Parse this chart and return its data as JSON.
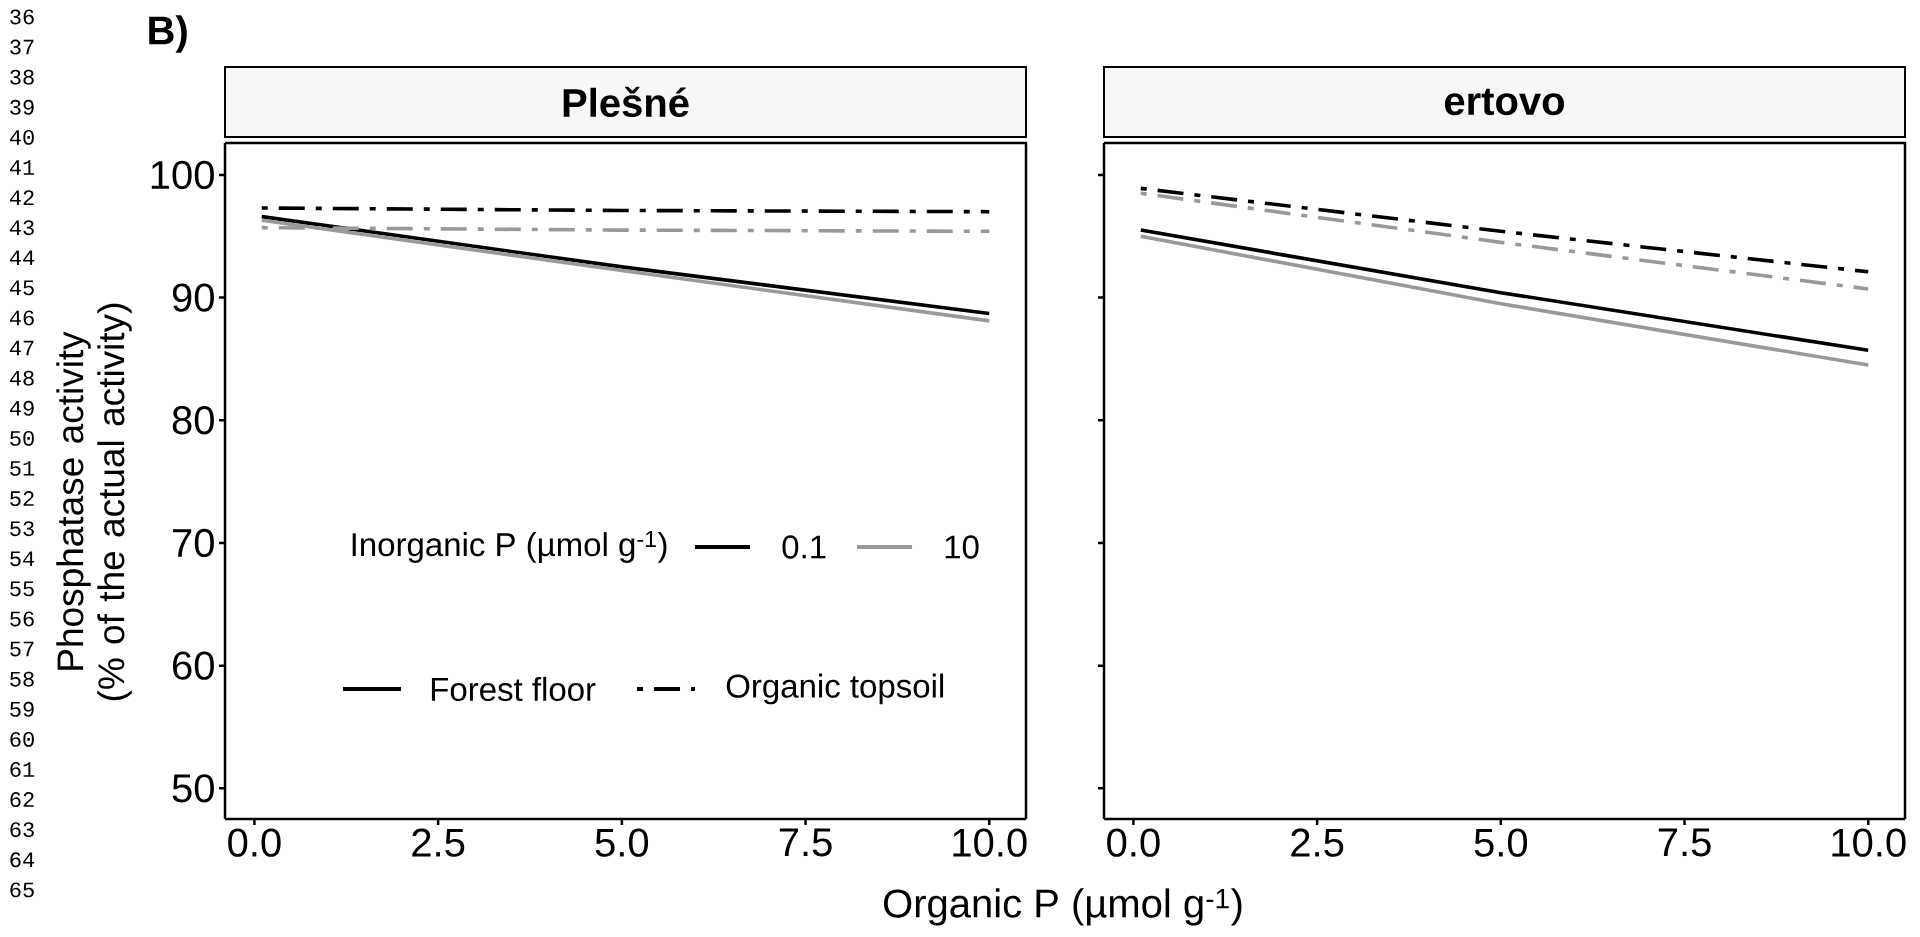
{
  "chart_data": [
    {
      "type": "line",
      "title": "Plešné",
      "ylabel": "Phosphatase activity\n(% of the actual activity)",
      "xlabel": "Organic P (µmol g$^{-1}$)",
      "legend_title": "Inorganic P (µmol g$^{-1}$)",
      "legend": "bottom",
      "xlim": [
        -0.4,
        10.5
      ],
      "xticks": [
        {
          "value": 0,
          "label": "0.0"
        },
        {
          "value": 2.5,
          "label": "2.5"
        },
        {
          "value": 5,
          "label": "5.0"
        },
        {
          "value": 7.5,
          "label": "7.5"
        },
        {
          "value": 10,
          "label": "10.0"
        }
      ],
      "ylim": [
        47.5,
        102.6
      ],
      "yticks": [
        50,
        60,
        70,
        80,
        90,
        100
      ],
      "grid": false,
      "series": [
        {
          "name": "0.1",
          "color": "#000000",
          "line_style": "solid",
          "x": [
            0.1,
            5,
            10
          ],
          "values": [
            96.6,
            92.5,
            88.7
          ]
        },
        {
          "name": "10",
          "color": "#999999",
          "line_style": "solid",
          "x": [
            0.1,
            5,
            10
          ],
          "values": [
            96.3,
            92.2,
            88.1
          ]
        },
        {
          "color": "#000000",
          "line_style": "dashdot",
          "x": [
            0.1,
            5,
            10
          ],
          "values": [
            97.3,
            97.1,
            97.0
          ]
        },
        {
          "color": "#999999",
          "line_style": "dashdot",
          "x": [
            0.1,
            5,
            10
          ],
          "values": [
            95.7,
            95.5,
            95.4
          ]
        }
      ],
      "annotations": [
        "B)",
        "Forest floor",
        "Organic topsoil",
        "36",
        "37",
        "38",
        "39",
        "40",
        "41",
        "42",
        "43",
        "44",
        "45",
        "46",
        "47",
        "48",
        "49",
        "50",
        "51",
        "52",
        "53",
        "54",
        "55",
        "56",
        "57",
        "58",
        "59",
        "60",
        "61",
        "62",
        "63",
        "64",
        "65"
      ]
    },
    {
      "type": "line",
      "title": "ertovo",
      "tick_labels": "x",
      "xlim": [
        -0.4,
        10.5
      ],
      "xticks": [
        {
          "value": 0,
          "label": "0.0"
        },
        {
          "value": 2.5,
          "label": "2.5"
        },
        {
          "value": 5,
          "label": "5.0"
        },
        {
          "value": 7.5,
          "label": "7.5"
        },
        {
          "value": 10,
          "label": "10.0"
        }
      ],
      "ylim": [
        47.5,
        102.6
      ],
      "yticks": [
        50,
        60,
        70,
        80,
        90,
        100
      ],
      "grid": false,
      "series": [
        {
          "color": "#000000",
          "line_style": "solid",
          "x": [
            0.1,
            5,
            10
          ],
          "values": [
            95.5,
            90.4,
            85.7
          ]
        },
        {
          "color": "#999999",
          "line_style": "solid",
          "x": [
            0.1,
            5,
            10
          ],
          "values": [
            95.0,
            89.5,
            84.5
          ]
        },
        {
          "color": "#000000",
          "line_style": "dashdot",
          "x": [
            0.1,
            5,
            10
          ],
          "values": [
            98.9,
            95.4,
            92.1
          ]
        },
        {
          "color": "#999999",
          "line_style": "dashdot",
          "x": [
            0.1,
            5,
            10
          ],
          "values": [
            98.5,
            94.5,
            90.7
          ]
        }
      ]
    }
  ]
}
